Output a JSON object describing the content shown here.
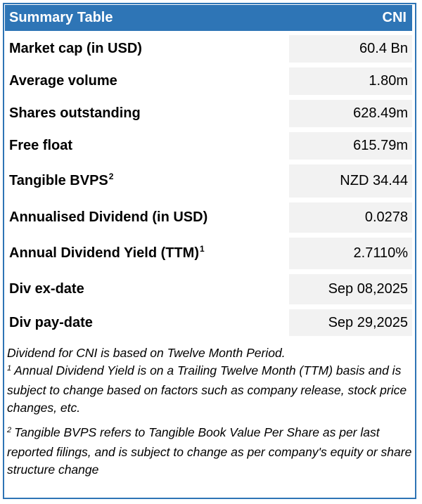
{
  "header": {
    "title": "Summary Table",
    "ticker": "CNI"
  },
  "rows": [
    {
      "label": "Market cap (in USD)",
      "sup": "",
      "value": "60.4 Bn"
    },
    {
      "label": "Average volume",
      "sup": "",
      "value": "1.80m"
    },
    {
      "label": "Shares outstanding",
      "sup": "",
      "value": "628.49m"
    },
    {
      "label": "Free float",
      "sup": "",
      "value": "615.79m"
    },
    {
      "label": "Tangible BVPS",
      "sup": "2",
      "value": "NZD 34.44"
    },
    {
      "label": "Annualised Dividend (in USD)",
      "sup": "",
      "value": "0.0278"
    },
    {
      "label": "Annual Dividend Yield (TTM)",
      "sup": "1",
      "value": "2.7110%"
    },
    {
      "label": "Div ex-date",
      "sup": "",
      "value": "Sep 08,2025"
    },
    {
      "label": "Div pay-date",
      "sup": "",
      "value": "Sep 29,2025"
    }
  ],
  "notes": {
    "period_note": "Dividend for CNI is based on Twelve Month Period.",
    "footnote_1": {
      "marker": "1",
      "text": "Annual Dividend Yield is on a Trailing Twelve Month (TTM) basis and is subject to change based on factors such as company release, stock price changes, etc."
    },
    "footnote_2": {
      "marker": "2",
      "text": "Tangible BVPS refers to Tangible Book Value Per Share as per last reported filings, and is subject to change as per company's equity or share structure change"
    }
  }
}
